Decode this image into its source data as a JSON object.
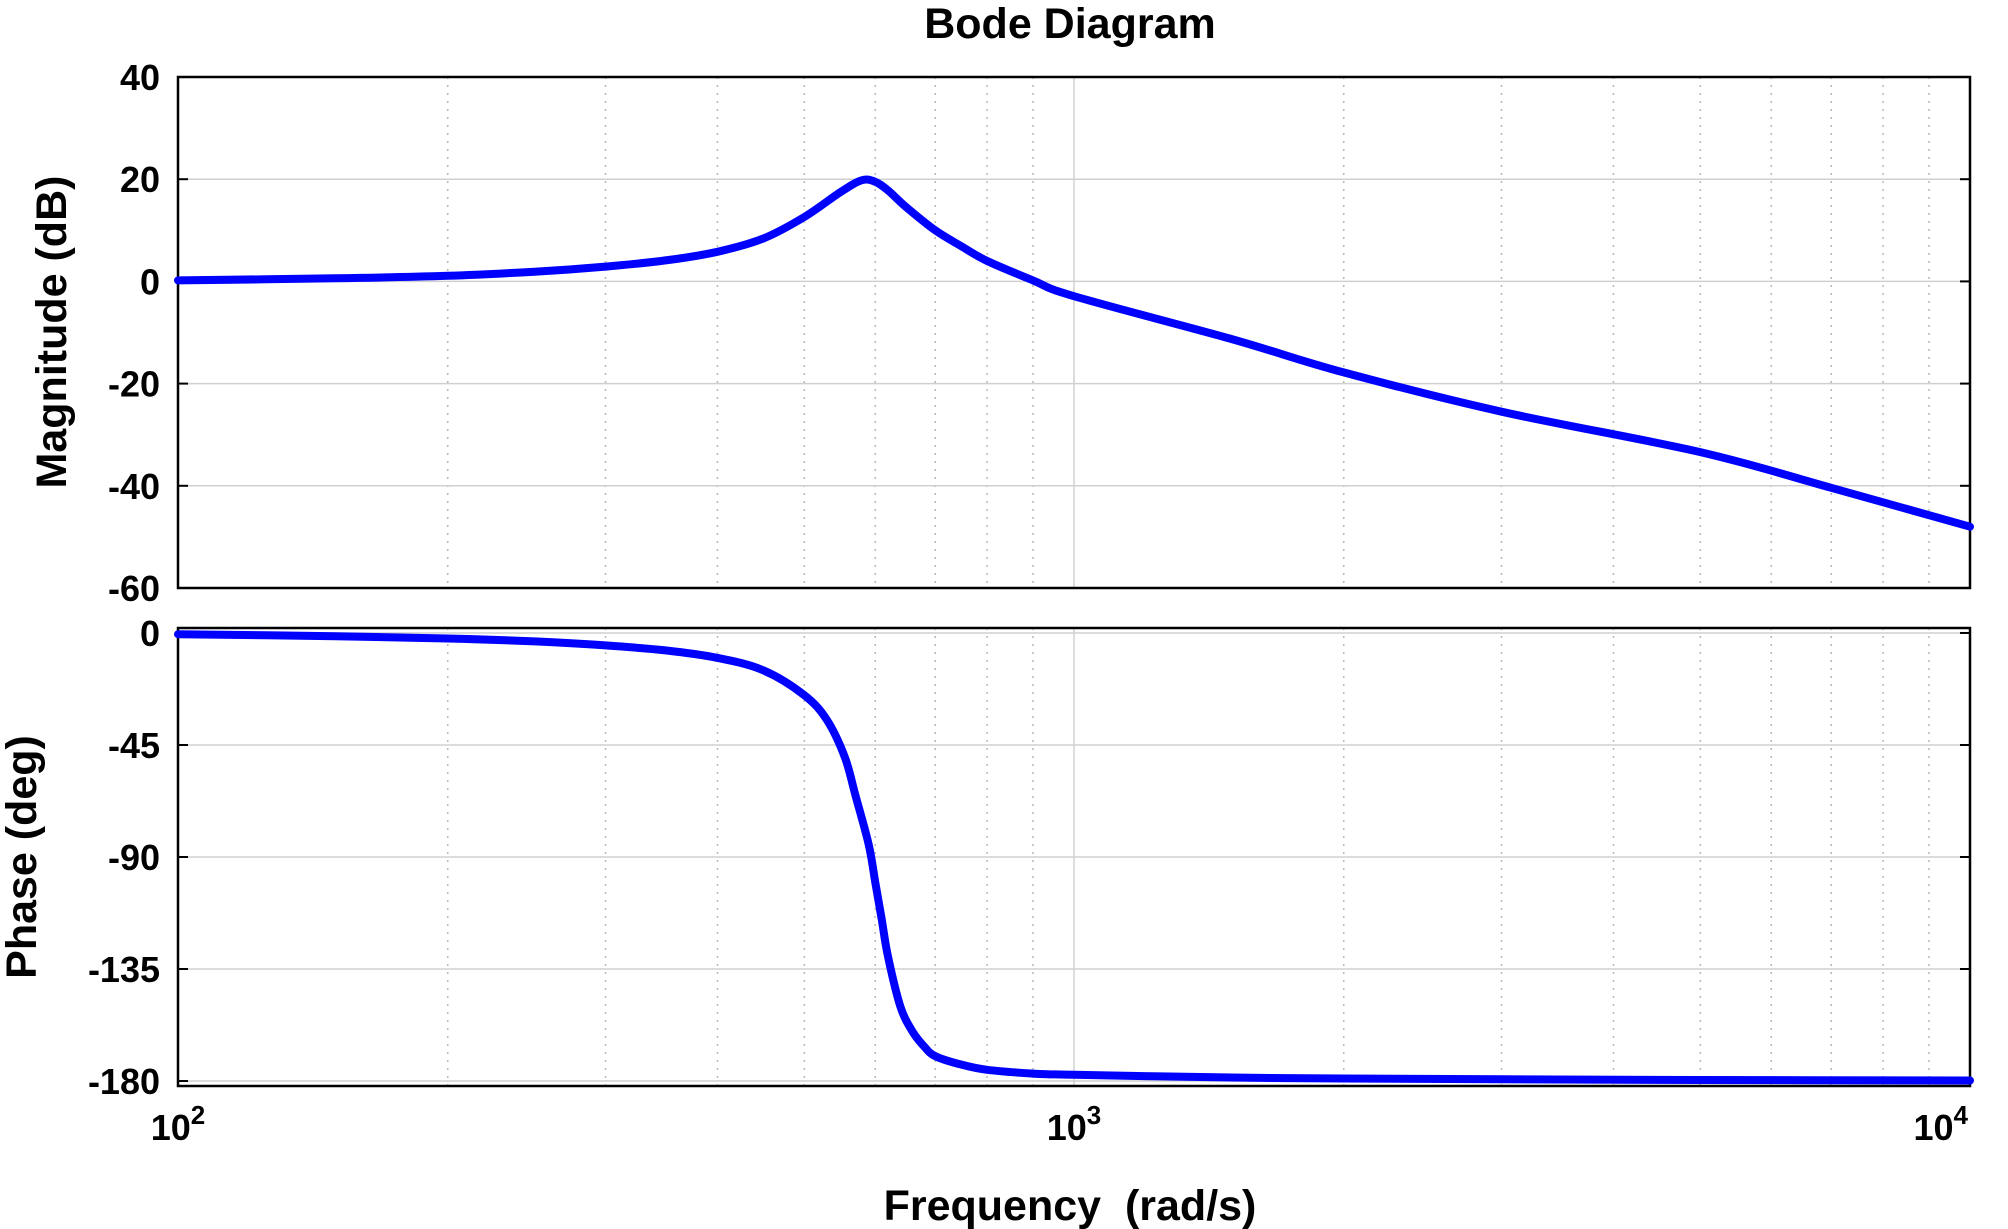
{
  "chart_data": {
    "type": "line",
    "title": "Bode Diagram",
    "xlabel": "Frequency  (rad/s)",
    "xscale": "log",
    "xlim": [
      100,
      10000
    ],
    "x_ticks": [
      {
        "value": 100,
        "base": "10",
        "exp": "2"
      },
      {
        "value": 1000,
        "base": "10",
        "exp": "3"
      },
      {
        "value": 10000,
        "base": "10",
        "exp": "4"
      }
    ],
    "grid": true,
    "colors": {
      "curve": "#0000ff"
    },
    "magnitude": {
      "ylabel": "Magnitude (dB)",
      "ylim": [
        -60,
        40
      ],
      "yticks": [
        "40",
        "20",
        "0",
        "-20",
        "-40",
        "-60"
      ],
      "x": [
        100,
        150,
        200,
        250,
        300,
        350,
        400,
        450,
        500,
        550,
        580,
        600,
        620,
        650,
        700,
        750,
        800,
        900,
        1000,
        1500,
        2000,
        3000,
        5000,
        7000,
        10000
      ],
      "y": [
        0.2,
        0.6,
        1.1,
        1.9,
        2.9,
        4.1,
        5.8,
        8.4,
        12.6,
        17.6,
        19.8,
        19.5,
        17.8,
        14.5,
        10.0,
        6.8,
        4.0,
        0.2,
        -2.9,
        -11.3,
        -17.8,
        -25.5,
        -33.4,
        -40.4,
        -48.0
      ]
    },
    "phase": {
      "ylabel": "Phase (deg)",
      "ylim": [
        -182,
        2
      ],
      "yticks": [
        "0",
        "-45",
        "-90",
        "-135",
        "-180"
      ],
      "x": [
        100,
        150,
        200,
        250,
        300,
        350,
        400,
        450,
        500,
        530,
        555,
        570,
        590,
        600,
        610,
        620,
        640,
        660,
        680,
        700,
        750,
        800,
        900,
        1000,
        1500,
        2000,
        3000,
        5000,
        10000
      ],
      "y": [
        -0.5,
        -1.3,
        -2.2,
        -3.4,
        -5.0,
        -7.0,
        -10.0,
        -15.0,
        -25.0,
        -35.0,
        -50.0,
        -65.0,
        -85.0,
        -100.0,
        -115.0,
        -130.0,
        -150.0,
        -160.0,
        -166.0,
        -170.0,
        -173.5,
        -175.5,
        -177.0,
        -177.5,
        -178.6,
        -179.0,
        -179.3,
        -179.6,
        -179.8
      ]
    }
  }
}
